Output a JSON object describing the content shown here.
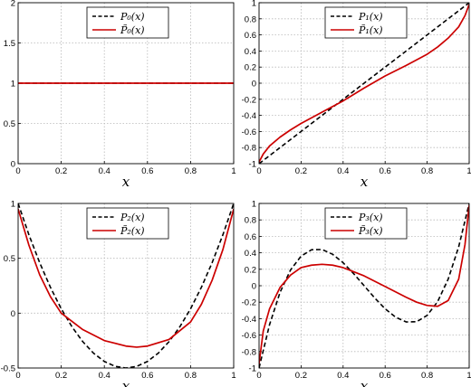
{
  "chart_data": [
    {
      "type": "line",
      "xlabel": "x",
      "xlim": [
        0,
        1
      ],
      "ylim": [
        0,
        2
      ],
      "xticks": [
        "0",
        "0.2",
        "0.4",
        "0.6",
        "0.8",
        "1"
      ],
      "yticks": [
        "0",
        "0.5",
        "1",
        "1.5",
        "2"
      ],
      "grid": true,
      "legend_position": "top-center",
      "series": [
        {
          "name": "P₀(x)",
          "style": "dashed",
          "color": "#000000",
          "x": [
            0,
            1
          ],
          "y": [
            1,
            1
          ]
        },
        {
          "name": "P̃₀(x)",
          "style": "solid",
          "color": "#cc0000",
          "x": [
            0,
            1
          ],
          "y": [
            1,
            1
          ]
        }
      ]
    },
    {
      "type": "line",
      "xlabel": "x",
      "xlim": [
        0,
        1
      ],
      "ylim": [
        -1,
        1
      ],
      "xticks": [
        "0",
        "0.2",
        "0.4",
        "0.6",
        "0.8",
        "1"
      ],
      "yticks": [
        "-1",
        "-0.8",
        "-0.6",
        "-0.4",
        "-0.2",
        "0",
        "0.2",
        "0.4",
        "0.6",
        "0.8",
        "1"
      ],
      "grid": true,
      "legend_position": "top-center",
      "series": [
        {
          "name": "P₁(x)",
          "style": "dashed",
          "color": "#000000",
          "x": [
            0,
            1
          ],
          "y": [
            -1,
            1
          ]
        },
        {
          "name": "P̃₁(x)",
          "style": "solid",
          "color": "#cc0000",
          "x": [
            0,
            0.02,
            0.05,
            0.1,
            0.15,
            0.2,
            0.3,
            0.4,
            0.5,
            0.6,
            0.7,
            0.8,
            0.85,
            0.9,
            0.95,
            0.98,
            1
          ],
          "y": [
            -0.98,
            -0.88,
            -0.78,
            -0.67,
            -0.58,
            -0.5,
            -0.36,
            -0.22,
            -0.06,
            0.09,
            0.22,
            0.36,
            0.45,
            0.56,
            0.7,
            0.84,
            0.98
          ]
        }
      ]
    },
    {
      "type": "line",
      "xlabel": "x",
      "xlim": [
        0,
        1
      ],
      "ylim": [
        -0.5,
        1
      ],
      "xticks": [
        "0",
        "0.2",
        "0.4",
        "0.6",
        "0.8",
        "1"
      ],
      "yticks": [
        "-0.5",
        "0",
        "0.5",
        "1"
      ],
      "grid": true,
      "legend_position": "top-center",
      "series": [
        {
          "name": "P₂(x)",
          "style": "dashed",
          "color": "#000000",
          "x": [
            0,
            0.05,
            0.1,
            0.15,
            0.2,
            0.25,
            0.3,
            0.35,
            0.4,
            0.45,
            0.5,
            0.55,
            0.6,
            0.65,
            0.7,
            0.75,
            0.8,
            0.85,
            0.9,
            0.95,
            1
          ],
          "y": [
            1,
            0.715,
            0.46,
            0.235,
            0.04,
            -0.125,
            -0.26,
            -0.365,
            -0.44,
            -0.485,
            -0.5,
            -0.485,
            -0.44,
            -0.365,
            -0.26,
            -0.125,
            0.04,
            0.235,
            0.46,
            0.715,
            1
          ]
        },
        {
          "name": "P̃₂(x)",
          "style": "solid",
          "color": "#cc0000",
          "x": [
            0,
            0.05,
            0.1,
            0.15,
            0.2,
            0.3,
            0.4,
            0.5,
            0.55,
            0.6,
            0.7,
            0.8,
            0.85,
            0.9,
            0.95,
            1
          ],
          "y": [
            0.95,
            0.62,
            0.35,
            0.15,
            0.0,
            -0.15,
            -0.25,
            -0.3,
            -0.31,
            -0.3,
            -0.24,
            -0.08,
            0.08,
            0.3,
            0.58,
            0.95
          ]
        }
      ]
    },
    {
      "type": "line",
      "xlabel": "x",
      "xlim": [
        0,
        1
      ],
      "ylim": [
        -1,
        1
      ],
      "xticks": [
        "0",
        "0.2",
        "0.4",
        "0.6",
        "0.8",
        "1"
      ],
      "yticks": [
        "-1",
        "-0.8",
        "-0.6",
        "-0.4",
        "-0.2",
        "0",
        "0.2",
        "0.4",
        "0.6",
        "0.8",
        "1"
      ],
      "grid": true,
      "legend_position": "top-center",
      "series": [
        {
          "name": "P₃(x)",
          "style": "dashed",
          "color": "#000000",
          "x": [
            0,
            0.05,
            0.1,
            0.15,
            0.2,
            0.25,
            0.3,
            0.35,
            0.4,
            0.45,
            0.5,
            0.55,
            0.6,
            0.65,
            0.7,
            0.75,
            0.8,
            0.85,
            0.9,
            0.95,
            1
          ],
          "y": [
            -1,
            -0.4725,
            -0.08,
            0.1925,
            0.36,
            0.4375,
            0.44,
            0.3825,
            0.28,
            0.1475,
            0,
            -0.1475,
            -0.28,
            -0.3825,
            -0.44,
            -0.4375,
            -0.36,
            -0.1925,
            0.08,
            0.4725,
            1
          ]
        },
        {
          "name": "P̃₃(x)",
          "style": "solid",
          "color": "#cc0000",
          "x": [
            0,
            0.02,
            0.05,
            0.1,
            0.15,
            0.2,
            0.25,
            0.3,
            0.35,
            0.4,
            0.5,
            0.6,
            0.7,
            0.75,
            0.8,
            0.85,
            0.9,
            0.95,
            0.98,
            1
          ],
          "y": [
            -0.95,
            -0.55,
            -0.28,
            -0.02,
            0.13,
            0.22,
            0.25,
            0.26,
            0.25,
            0.22,
            0.12,
            -0.01,
            -0.14,
            -0.2,
            -0.24,
            -0.25,
            -0.18,
            0.08,
            0.5,
            0.98
          ]
        }
      ]
    }
  ]
}
